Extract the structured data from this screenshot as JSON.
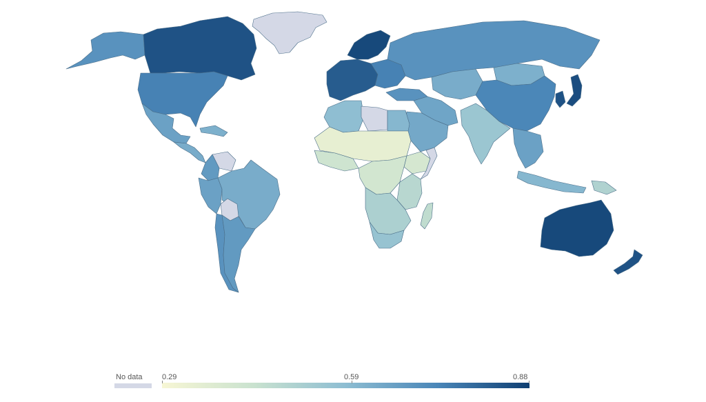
{
  "map": {
    "projection": "robinson-like world map",
    "regions": [
      {
        "name": "Canada",
        "value": 0.84
      },
      {
        "name": "Alaska",
        "value": 0.7
      },
      {
        "name": "Greenland",
        "value": null
      },
      {
        "name": "United States",
        "value": 0.74
      },
      {
        "name": "Mexico",
        "value": 0.66
      },
      {
        "name": "Central America",
        "value": 0.63
      },
      {
        "name": "Caribbean",
        "value": 0.62
      },
      {
        "name": "Venezuela",
        "value": null
      },
      {
        "name": "Colombia",
        "value": 0.68
      },
      {
        "name": "Peru",
        "value": 0.66
      },
      {
        "name": "Brazil",
        "value": 0.63
      },
      {
        "name": "Bolivia",
        "value": null
      },
      {
        "name": "Chile",
        "value": 0.7
      },
      {
        "name": "Argentina",
        "value": 0.68
      },
      {
        "name": "Western Europe",
        "value": 0.82
      },
      {
        "name": "Scandinavia",
        "value": 0.86
      },
      {
        "name": "Eastern Europe",
        "value": 0.74
      },
      {
        "name": "Russia",
        "value": 0.7
      },
      {
        "name": "Turkey",
        "value": 0.7
      },
      {
        "name": "Middle East",
        "value": 0.65
      },
      {
        "name": "Saudi Arabia",
        "value": 0.64
      },
      {
        "name": "Central Asia",
        "value": 0.63
      },
      {
        "name": "Mongolia",
        "value": 0.62
      },
      {
        "name": "China",
        "value": 0.73
      },
      {
        "name": "Japan",
        "value": 0.85
      },
      {
        "name": "Korea",
        "value": 0.84
      },
      {
        "name": "India",
        "value": 0.55
      },
      {
        "name": "Southeast Asia",
        "value": 0.66
      },
      {
        "name": "Indonesia",
        "value": 0.6
      },
      {
        "name": "Papua New Guinea",
        "value": 0.5
      },
      {
        "name": "Australia",
        "value": 0.86
      },
      {
        "name": "New Zealand",
        "value": 0.84
      },
      {
        "name": "North Africa",
        "value": 0.58
      },
      {
        "name": "Libya",
        "value": null
      },
      {
        "name": "Egypt",
        "value": 0.6
      },
      {
        "name": "Sahel",
        "value": 0.34
      },
      {
        "name": "West Africa",
        "value": 0.42
      },
      {
        "name": "Central Africa",
        "value": 0.41
      },
      {
        "name": "Ethiopia",
        "value": 0.4
      },
      {
        "name": "Somalia",
        "value": null
      },
      {
        "name": "East Africa",
        "value": 0.48
      },
      {
        "name": "Southern Africa",
        "value": 0.51
      },
      {
        "name": "South Africa",
        "value": 0.56
      },
      {
        "name": "Madagascar",
        "value": 0.46
      }
    ]
  },
  "legend": {
    "no_data_label": "No data",
    "no_data_color": "#d4d8e6",
    "min_label": "0.29",
    "mid_label": "0.59",
    "max_label": "0.88",
    "min": 0.29,
    "max": 0.88,
    "color_stops": [
      "#f7f6d4",
      "#c9e2cf",
      "#8dbdd2",
      "#4a86b8",
      "#0f3f72"
    ]
  }
}
